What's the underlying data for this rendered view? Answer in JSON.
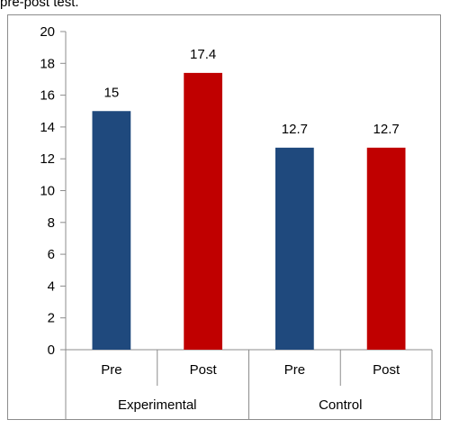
{
  "caption": "pre-post test.",
  "chart_data": {
    "type": "bar",
    "title": "",
    "xlabel": "",
    "ylabel": "",
    "ylim": [
      0,
      20
    ],
    "ytick_step": 2,
    "yticks": [
      "0",
      "2",
      "4",
      "6",
      "8",
      "10",
      "12",
      "14",
      "16",
      "18",
      "20"
    ],
    "grid": false,
    "groups": [
      {
        "label": "Experimental",
        "bars": [
          {
            "label": "Pre",
            "value": 15,
            "value_label": "15",
            "color": "#1f497d"
          },
          {
            "label": "Post",
            "value": 17.4,
            "value_label": "17.4",
            "color": "#c00000"
          }
        ]
      },
      {
        "label": "Control",
        "bars": [
          {
            "label": "Pre",
            "value": 12.7,
            "value_label": "12.7",
            "color": "#1f497d"
          },
          {
            "label": "Post",
            "value": 12.7,
            "value_label": "12.7",
            "color": "#c00000"
          }
        ]
      }
    ]
  }
}
